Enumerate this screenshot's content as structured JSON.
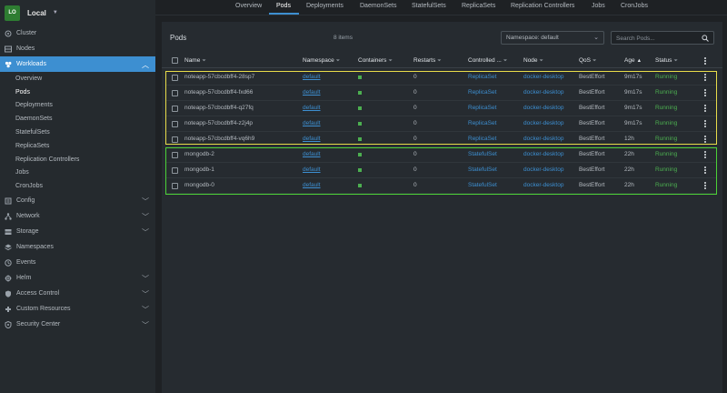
{
  "cluster": {
    "avatar": "LO",
    "name": "Local"
  },
  "sidebar": {
    "items": [
      {
        "label": "Cluster",
        "icon": "cluster-icon",
        "chevron": false
      },
      {
        "label": "Nodes",
        "icon": "nodes-icon",
        "chevron": false
      },
      {
        "label": "Workloads",
        "icon": "workloads-icon",
        "chevron": true,
        "active": true
      }
    ],
    "workloads_sub": [
      "Overview",
      "Pods",
      "Deployments",
      "DaemonSets",
      "StatefulSets",
      "ReplicaSets",
      "Replication Controllers",
      "Jobs",
      "CronJobs"
    ],
    "lower_items": [
      {
        "label": "Config",
        "icon": "config-icon",
        "chevron": true
      },
      {
        "label": "Network",
        "icon": "network-icon",
        "chevron": true
      },
      {
        "label": "Storage",
        "icon": "storage-icon",
        "chevron": true
      },
      {
        "label": "Namespaces",
        "icon": "namespaces-icon",
        "chevron": false
      },
      {
        "label": "Events",
        "icon": "events-icon",
        "chevron": false
      },
      {
        "label": "Helm",
        "icon": "helm-icon",
        "chevron": true
      },
      {
        "label": "Access Control",
        "icon": "access-control-icon",
        "chevron": true
      },
      {
        "label": "Custom Resources",
        "icon": "custom-resources-icon",
        "chevron": true
      },
      {
        "label": "Security Center",
        "icon": "security-center-icon",
        "chevron": true
      }
    ]
  },
  "tabs": [
    "Overview",
    "Pods",
    "Deployments",
    "DaemonSets",
    "StatefulSets",
    "ReplicaSets",
    "Replication Controllers",
    "Jobs",
    "CronJobs"
  ],
  "active_tab": "Pods",
  "panel": {
    "title": "Pods",
    "count": "8 items",
    "namespace_select": "Namespace: default",
    "search_placeholder": "Search Pods..."
  },
  "table": {
    "headers": [
      "Name",
      "Namespace",
      "Containers",
      "Restarts",
      "Controlled ...",
      "Node",
      "QoS",
      "Age",
      "Status"
    ],
    "rows": [
      {
        "name": "noteapp-57cbcdbff4-28sp7",
        "namespace": "default",
        "restarts": "0",
        "controlled": "ReplicaSet",
        "node": "docker-desktop",
        "qos": "BestEffort",
        "age": "9m17s",
        "status": "Running"
      },
      {
        "name": "noteapp-57cbcdbff4-fxd66",
        "namespace": "default",
        "restarts": "0",
        "controlled": "ReplicaSet",
        "node": "docker-desktop",
        "qos": "BestEffort",
        "age": "9m17s",
        "status": "Running"
      },
      {
        "name": "noteapp-57cbcdbff4-q27fq",
        "namespace": "default",
        "restarts": "0",
        "controlled": "ReplicaSet",
        "node": "docker-desktop",
        "qos": "BestEffort",
        "age": "9m17s",
        "status": "Running"
      },
      {
        "name": "noteapp-57cbcdbff4-z2j4p",
        "namespace": "default",
        "restarts": "0",
        "controlled": "ReplicaSet",
        "node": "docker-desktop",
        "qos": "BestEffort",
        "age": "9m17s",
        "status": "Running"
      },
      {
        "name": "noteapp-57cbcdbff4-vq6h9",
        "namespace": "default",
        "restarts": "0",
        "controlled": "ReplicaSet",
        "node": "docker-desktop",
        "qos": "BestEffort",
        "age": "12h",
        "status": "Running"
      },
      {
        "name": "mongodb-2",
        "namespace": "default",
        "restarts": "0",
        "controlled": "StatefulSet",
        "node": "docker-desktop",
        "qos": "BestEffort",
        "age": "22h",
        "status": "Running"
      },
      {
        "name": "mongodb-1",
        "namespace": "default",
        "restarts": "0",
        "controlled": "StatefulSet",
        "node": "docker-desktop",
        "qos": "BestEffort",
        "age": "22h",
        "status": "Running"
      },
      {
        "name": "mongodb-0",
        "namespace": "default",
        "restarts": "0",
        "controlled": "StatefulSet",
        "node": "docker-desktop",
        "qos": "BestEffort",
        "age": "22h",
        "status": "Running"
      }
    ]
  },
  "colors": {
    "accent": "#3d8fd1",
    "running": "#4caf50",
    "highlight_replicaset": "#e8dc4a",
    "highlight_statefulset": "#4cd137"
  }
}
